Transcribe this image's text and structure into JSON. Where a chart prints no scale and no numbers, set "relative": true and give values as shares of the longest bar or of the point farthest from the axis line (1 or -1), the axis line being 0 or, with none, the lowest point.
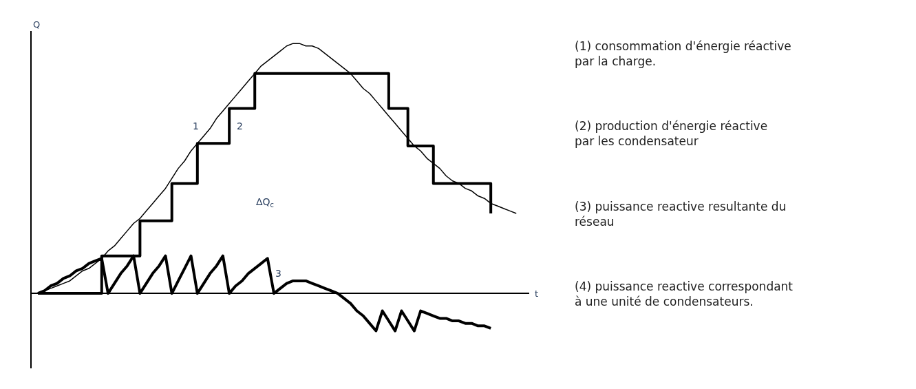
{
  "chart_data": {
    "type": "line",
    "relative": true,
    "xlabel": "t",
    "ylabel": "Q",
    "marker": "none",
    "line_style": "solid",
    "categories": [
      null,
      null,
      null,
      null,
      null,
      null,
      null,
      null,
      null,
      null,
      null,
      null,
      null,
      null,
      null,
      null,
      null,
      null,
      null,
      null,
      null,
      null,
      null,
      null,
      null,
      null,
      null,
      null,
      null,
      null,
      null,
      null,
      null,
      null,
      null,
      null,
      null,
      null,
      null,
      null,
      null,
      null,
      null,
      null,
      null,
      null,
      null,
      null,
      null,
      null,
      null,
      null,
      null,
      null,
      null,
      null,
      null,
      null,
      null,
      null,
      null,
      null,
      null,
      null,
      null,
      null,
      null,
      null,
      null,
      null,
      null,
      null,
      null,
      null,
      null,
      null
    ],
    "series": [
      {
        "color": "#000000",
        "values": [
          0,
          0.01,
          0.02,
          0.03,
          0.04,
          0.05,
          0.07,
          0.09,
          0.1,
          0.12,
          0.14,
          0.17,
          0.19,
          0.22,
          0.25,
          0.28,
          0.3,
          0.33,
          0.36,
          0.39,
          0.42,
          0.46,
          0.5,
          0.53,
          0.57,
          0.6,
          0.63,
          0.66,
          0.7,
          0.73,
          0.76,
          0.79,
          0.82,
          0.85,
          0.88,
          0.91,
          0.93,
          0.95,
          0.97,
          0.99,
          1,
          1,
          0.99,
          0.99,
          0.98,
          0.96,
          0.94,
          0.92,
          0.9,
          0.88,
          0.85,
          0.82,
          0.8,
          0.77,
          0.74,
          0.71,
          0.68,
          0.65,
          0.62,
          0.59,
          0.57,
          0.54,
          0.52,
          0.5,
          0.47,
          0.45,
          0.44,
          0.42,
          0.41,
          0.39,
          0.38,
          0.36,
          0.35,
          0.34,
          0.33,
          0.32
        ]
      },
      {
        "type": "step",
        "color": "#000000",
        "values": [
          0,
          0,
          0,
          0,
          0,
          0,
          0,
          0,
          0,
          0,
          0.15,
          0.15,
          0.15,
          0.15,
          0.15,
          0.15,
          0.29,
          0.29,
          0.29,
          0.29,
          0.29,
          0.44,
          0.44,
          0.44,
          0.44,
          0.6,
          0.6,
          0.6,
          0.6,
          0.6,
          0.74,
          0.74,
          0.74,
          0.74,
          0.88,
          0.88,
          0.88,
          0.88,
          0.88,
          0.88,
          0.88,
          0.88,
          0.88,
          0.88,
          0.88,
          0.88,
          0.88,
          0.88,
          0.88,
          0.88,
          0.88,
          0.88,
          0.88,
          0.88,
          0.88,
          0.74,
          0.74,
          0.74,
          0.59,
          0.59,
          0.59,
          0.59,
          0.44,
          0.44,
          0.44,
          0.44,
          0.44,
          0.44,
          0.44,
          0.44,
          0.44,
          0.32,
          null,
          null,
          null,
          null
        ]
      },
      {
        "color": "#000000",
        "values": [
          0,
          0.01,
          0.03,
          0.04,
          0.06,
          0.07,
          0.09,
          0.1,
          0.12,
          0.13,
          0.14,
          0,
          0.04,
          0.08,
          0.11,
          0.15,
          0,
          0.04,
          0.08,
          0.11,
          0.15,
          0,
          0.05,
          0.1,
          0.15,
          0,
          0.04,
          0.08,
          0.11,
          0.15,
          0,
          0.03,
          0.05,
          0.08,
          0.1,
          0.12,
          0.14,
          0,
          0.02,
          0.04,
          0.05,
          0.05,
          0.05,
          0.04,
          0.03,
          0.02,
          0.01,
          0,
          -0.02,
          -0.04,
          -0.07,
          -0.09,
          -0.12,
          -0.15,
          -0.07,
          -0.11,
          -0.15,
          -0.07,
          -0.11,
          -0.15,
          -0.07,
          -0.08,
          -0.09,
          -0.1,
          -0.1,
          -0.11,
          -0.11,
          -0.12,
          -0.12,
          -0.13,
          -0.13,
          -0.14,
          null,
          null,
          null,
          null
        ]
      }
    ],
    "annotations": [
      "1",
      "2",
      "3",
      "ΔQ$_{c}$",
      "(1) consommation d'énergie réactive par la charge.",
      "(2) production d'énergie réactive par les condensateur",
      "(3) puissance reactive resultante du réseau",
      "(4) puissance reactive correspondant à une unité de condensateurs."
    ]
  }
}
